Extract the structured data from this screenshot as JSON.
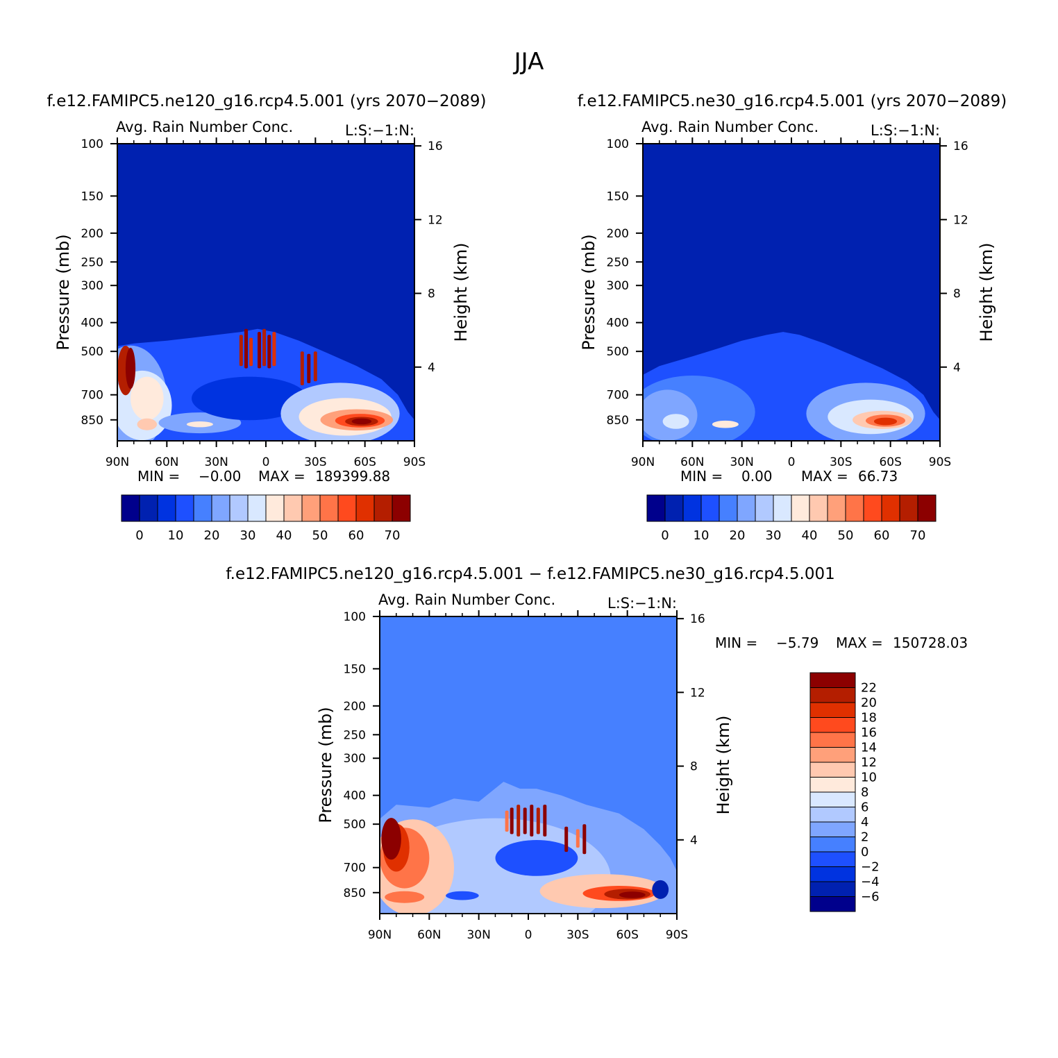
{
  "figure_title": "JJA",
  "colors": {
    "scale": [
      "#00008c",
      "#0021b0",
      "#0033e0",
      "#1e50ff",
      "#4680ff",
      "#7fa6ff",
      "#b1c9ff",
      "#d9e8ff",
      "#ffeadc",
      "#ffc9b0",
      "#ffa07a",
      "#ff7448",
      "#ff4a1e",
      "#e03000",
      "#b41e00",
      "#8c0000"
    ],
    "background_ne": "#0021b0",
    "background_diff": "#4680ff",
    "axis": "#000000"
  },
  "chart_data": [
    {
      "type": "heatmap",
      "panel_title": "f.e12.FAMIPC5.ne120_g16.rcp4.5.001 (yrs 2070−2089)",
      "left_title": "Avg. Rain Number Conc.",
      "right_title": "L:S:−1:N:",
      "xlabel": "",
      "ylabel": "Pressure (mb)",
      "y2label": "Height (km)",
      "x_ticks": [
        "90N",
        "60N",
        "30N",
        "0",
        "30S",
        "60S",
        "90S"
      ],
      "x_range": [
        90,
        -90
      ],
      "y_ticks": [
        100,
        150,
        200,
        250,
        300,
        400,
        500,
        700,
        850
      ],
      "y_range": [
        100,
        1000
      ],
      "y2_ticks": [
        16,
        12,
        8,
        4
      ],
      "min_label": "MIN =",
      "min_value": "−0.00",
      "max_label": "MAX =",
      "max_value": "189399.88",
      "colorbar_labels": [
        "0",
        "10",
        "20",
        "30",
        "40",
        "50",
        "60",
        "70"
      ],
      "colorbar_levels": [
        -5,
        0,
        5,
        10,
        15,
        20,
        25,
        30,
        35,
        40,
        45,
        50,
        55,
        60,
        65,
        70,
        75
      ],
      "blobs": [
        {
          "lat": 10,
          "p": 950,
          "rlat": 80,
          "rp": 430,
          "level": 3
        },
        {
          "lat": 82,
          "p": 720,
          "rlat": 22,
          "rp": 280,
          "level": 5
        },
        {
          "lat": 75,
          "p": 760,
          "rlat": 18,
          "rp": 200,
          "level": 7
        },
        {
          "lat": 72,
          "p": 720,
          "rlat": 10,
          "rp": 120,
          "level": 8
        },
        {
          "lat": 85,
          "p": 580,
          "rlat": 5,
          "rp": 110,
          "level": 14
        },
        {
          "lat": 82,
          "p": 570,
          "rlat": 3,
          "rp": 90,
          "level": 15
        },
        {
          "lat": 72,
          "p": 880,
          "rlat": 6,
          "rp": 40,
          "level": 9
        },
        {
          "lat": 40,
          "p": 870,
          "rlat": 25,
          "rp": 70,
          "level": 5
        },
        {
          "lat": 40,
          "p": 880,
          "rlat": 8,
          "rp": 20,
          "level": 8
        },
        {
          "lat": 10,
          "p": 720,
          "rlat": 35,
          "rp": 120,
          "level": 2
        },
        {
          "lat": -45,
          "p": 810,
          "rlat": 36,
          "rp": 190,
          "level": 6
        },
        {
          "lat": -48,
          "p": 830,
          "rlat": 28,
          "rp": 120,
          "level": 8
        },
        {
          "lat": -55,
          "p": 850,
          "rlat": 22,
          "rp": 70,
          "level": 10
        },
        {
          "lat": -57,
          "p": 855,
          "rlat": 15,
          "rp": 45,
          "level": 12
        },
        {
          "lat": -58,
          "p": 860,
          "rlat": 10,
          "rp": 30,
          "level": 14
        },
        {
          "lat": -58,
          "p": 860,
          "rlat": 6,
          "rp": 20,
          "level": 15
        }
      ],
      "streaks": [
        {
          "lat": 15,
          "p1": 440,
          "p2": 560,
          "level": 14
        },
        {
          "lat": 12,
          "p1": 420,
          "p2": 570,
          "level": 15
        },
        {
          "lat": 9,
          "p1": 450,
          "p2": 560,
          "level": 13
        },
        {
          "lat": 4,
          "p1": 430,
          "p2": 570,
          "level": 15
        },
        {
          "lat": 1,
          "p1": 420,
          "p2": 560,
          "level": 14
        },
        {
          "lat": -2,
          "p1": 440,
          "p2": 570,
          "level": 15
        },
        {
          "lat": -5,
          "p1": 430,
          "p2": 560,
          "level": 13
        },
        {
          "lat": -22,
          "p1": 500,
          "p2": 650,
          "level": 14
        },
        {
          "lat": -26,
          "p1": 510,
          "p2": 640,
          "level": 15
        },
        {
          "lat": -30,
          "p1": 500,
          "p2": 630,
          "level": 14
        }
      ],
      "top_profile": [
        [
          90,
          480
        ],
        [
          80,
          470
        ],
        [
          60,
          460
        ],
        [
          45,
          450
        ],
        [
          30,
          440
        ],
        [
          15,
          430
        ],
        [
          5,
          420
        ],
        [
          -5,
          430
        ],
        [
          -20,
          460
        ],
        [
          -35,
          500
        ],
        [
          -55,
          560
        ],
        [
          -70,
          620
        ],
        [
          -80,
          700
        ],
        [
          -86,
          800
        ],
        [
          -90,
          850
        ]
      ]
    },
    {
      "type": "heatmap",
      "panel_title": "f.e12.FAMIPC5.ne30_g16.rcp4.5.001 (yrs 2070−2089)",
      "left_title": "Avg. Rain Number Conc.",
      "right_title": "L:S:−1:N:",
      "xlabel": "",
      "ylabel": "Pressure (mb)",
      "y2label": "Height (km)",
      "x_ticks": [
        "90N",
        "60N",
        "30N",
        "0",
        "30S",
        "60S",
        "90S"
      ],
      "x_range": [
        90,
        -90
      ],
      "y_ticks": [
        100,
        150,
        200,
        250,
        300,
        400,
        500,
        700,
        850
      ],
      "y_range": [
        100,
        1000
      ],
      "y2_ticks": [
        16,
        12,
        8,
        4
      ],
      "min_label": "MIN =",
      "min_value": "0.00",
      "max_label": "MAX =",
      "max_value": "66.73",
      "colorbar_labels": [
        "0",
        "10",
        "20",
        "30",
        "40",
        "50",
        "60",
        "70"
      ],
      "colorbar_levels": [
        -5,
        0,
        5,
        10,
        15,
        20,
        25,
        30,
        35,
        40,
        45,
        50,
        55,
        60,
        65,
        70,
        75
      ],
      "blobs": [
        {
          "lat": 60,
          "p": 800,
          "rlat": 38,
          "rp": 220,
          "level": 4
        },
        {
          "lat": 75,
          "p": 820,
          "rlat": 18,
          "rp": 160,
          "level": 5
        },
        {
          "lat": 70,
          "p": 860,
          "rlat": 8,
          "rp": 50,
          "level": 7
        },
        {
          "lat": 40,
          "p": 880,
          "rlat": 8,
          "rp": 25,
          "level": 8
        },
        {
          "lat": -45,
          "p": 810,
          "rlat": 36,
          "rp": 190,
          "level": 5
        },
        {
          "lat": -48,
          "p": 830,
          "rlat": 26,
          "rp": 110,
          "level": 7
        },
        {
          "lat": -55,
          "p": 850,
          "rlat": 18,
          "rp": 60,
          "level": 9
        },
        {
          "lat": -57,
          "p": 855,
          "rlat": 12,
          "rp": 40,
          "level": 11
        },
        {
          "lat": -57,
          "p": 860,
          "rlat": 7,
          "rp": 25,
          "level": 13
        }
      ],
      "streaks": [],
      "top_profile": [
        [
          90,
          600
        ],
        [
          80,
          560
        ],
        [
          60,
          520
        ],
        [
          45,
          490
        ],
        [
          30,
          460
        ],
        [
          15,
          440
        ],
        [
          5,
          430
        ],
        [
          -5,
          440
        ],
        [
          -20,
          470
        ],
        [
          -35,
          510
        ],
        [
          -55,
          570
        ],
        [
          -70,
          630
        ],
        [
          -80,
          700
        ],
        [
          -86,
          800
        ],
        [
          -90,
          850
        ]
      ]
    },
    {
      "type": "heatmap",
      "panel_title": "f.e12.FAMIPC5.ne120_g16.rcp4.5.001 − f.e12.FAMIPC5.ne30_g16.rcp4.5.001",
      "left_title": "Avg. Rain Number Conc.",
      "right_title": "L:S:−1:N:",
      "xlabel": "",
      "ylabel": "Pressure (mb)",
      "y2label": "Height (km)",
      "x_ticks": [
        "90N",
        "60N",
        "30N",
        "0",
        "30S",
        "60S",
        "90S"
      ],
      "x_range": [
        90,
        -90
      ],
      "y_ticks": [
        100,
        150,
        200,
        250,
        300,
        400,
        500,
        700,
        850
      ],
      "y_range": [
        100,
        1000
      ],
      "y2_ticks": [
        16,
        12,
        8,
        4
      ],
      "min_label": "MIN =",
      "min_value": "−5.79",
      "max_label": "MAX =",
      "max_value": "150728.03",
      "colorbar_labels": [
        "22",
        "20",
        "18",
        "16",
        "14",
        "12",
        "10",
        "8",
        "6",
        "4",
        "2",
        "0",
        "−2",
        "−4",
        "−6"
      ],
      "colorbar_levels": [
        -7,
        -6,
        -4,
        -2,
        0,
        2,
        4,
        6,
        8,
        10,
        12,
        14,
        16,
        18,
        20,
        22,
        24
      ],
      "blobs": [
        {
          "lat": 20,
          "p": 760,
          "rlat": 70,
          "rp": 330,
          "level": 6
        },
        {
          "lat": 70,
          "p": 700,
          "rlat": 25,
          "rp": 250,
          "level": 9
        },
        {
          "lat": 75,
          "p": 650,
          "rlat": 15,
          "rp": 150,
          "level": 11
        },
        {
          "lat": 80,
          "p": 600,
          "rlat": 8,
          "rp": 110,
          "level": 13
        },
        {
          "lat": 83,
          "p": 560,
          "rlat": 6,
          "rp": 90,
          "level": 15
        },
        {
          "lat": 75,
          "p": 880,
          "rlat": 12,
          "rp": 40,
          "level": 11
        },
        {
          "lat": 40,
          "p": 870,
          "rlat": 10,
          "rp": 30,
          "level": 3
        },
        {
          "lat": -5,
          "p": 650,
          "rlat": 25,
          "rp": 90,
          "level": 3
        },
        {
          "lat": -45,
          "p": 840,
          "rlat": 38,
          "rp": 110,
          "level": 9
        },
        {
          "lat": -55,
          "p": 855,
          "rlat": 22,
          "rp": 50,
          "level": 12
        },
        {
          "lat": -60,
          "p": 860,
          "rlat": 14,
          "rp": 35,
          "level": 14
        },
        {
          "lat": -63,
          "p": 865,
          "rlat": 8,
          "rp": 22,
          "level": 15
        },
        {
          "lat": -80,
          "p": 830,
          "rlat": 5,
          "rp": 60,
          "level": 1
        }
      ],
      "streaks": [
        {
          "lat": 10,
          "p1": 440,
          "p2": 540,
          "level": 15
        },
        {
          "lat": 6,
          "p1": 430,
          "p2": 550,
          "level": 14
        },
        {
          "lat": 2,
          "p1": 440,
          "p2": 540,
          "level": 15
        },
        {
          "lat": -2,
          "p1": 430,
          "p2": 550,
          "level": 15
        },
        {
          "lat": -6,
          "p1": 440,
          "p2": 540,
          "level": 14
        },
        {
          "lat": -10,
          "p1": 430,
          "p2": 550,
          "level": 15
        },
        {
          "lat": 13,
          "p1": 450,
          "p2": 530,
          "level": 11
        },
        {
          "lat": -23,
          "p1": 510,
          "p2": 620,
          "level": 15
        },
        {
          "lat": -34,
          "p1": 500,
          "p2": 630,
          "level": 15
        },
        {
          "lat": -30,
          "p1": 520,
          "p2": 600,
          "level": 11
        }
      ],
      "top_profile": [
        [
          90,
          480
        ],
        [
          80,
          430
        ],
        [
          60,
          440
        ],
        [
          45,
          410
        ],
        [
          30,
          420
        ],
        [
          15,
          360
        ],
        [
          5,
          380
        ],
        [
          -5,
          380
        ],
        [
          -20,
          400
        ],
        [
          -35,
          430
        ],
        [
          -55,
          460
        ],
        [
          -70,
          520
        ],
        [
          -80,
          590
        ],
        [
          -86,
          650
        ],
        [
          -90,
          720
        ]
      ]
    }
  ]
}
